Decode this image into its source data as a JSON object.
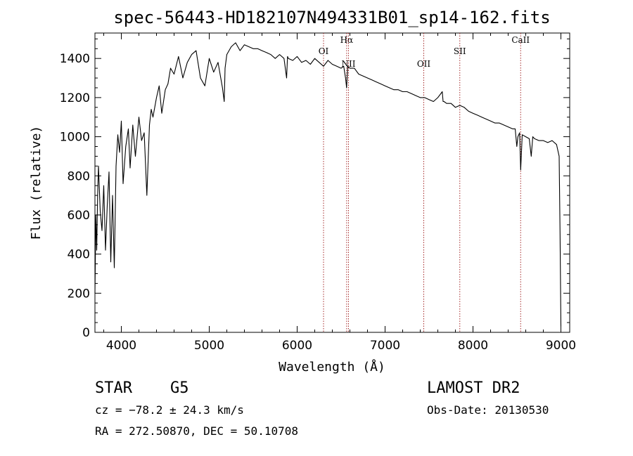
{
  "title": "spec-56443-HD182107N494331B01_sp14-162.fits",
  "chart_data": {
    "type": "line",
    "xlabel": "Wavelength (Å)",
    "ylabel": "Flux (relative)",
    "xlim": [
      3700,
      9100
    ],
    "ylim": [
      0,
      1530
    ],
    "xticks": [
      4000,
      5000,
      6000,
      7000,
      8000,
      9000
    ],
    "yticks": [
      0,
      200,
      400,
      600,
      800,
      1000,
      1200,
      1400
    ],
    "series": [
      {
        "x": [
          3700,
          3710,
          3720,
          3730,
          3740,
          3760,
          3780,
          3800,
          3820,
          3840,
          3860,
          3880,
          3900,
          3920,
          3940,
          3960,
          3980,
          4000,
          4020,
          4050,
          4080,
          4100,
          4130,
          4160,
          4200,
          4230,
          4260,
          4290,
          4320,
          4340,
          4360,
          4400,
          4430,
          4460,
          4500,
          4530,
          4560,
          4600,
          4650,
          4700,
          4750,
          4800,
          4850,
          4900,
          4950,
          5000,
          5050,
          5100,
          5150,
          5170,
          5180,
          5200,
          5250,
          5300,
          5350,
          5400,
          5450,
          5500,
          5550,
          5600,
          5650,
          5700,
          5750,
          5800,
          5850,
          5880,
          5890,
          5900,
          5950,
          6000,
          6050,
          6100,
          6150,
          6200,
          6250,
          6300,
          6350,
          6400,
          6450,
          6500,
          6530,
          6550,
          6562,
          6575,
          6600,
          6650,
          6700,
          6750,
          6800,
          6850,
          6900,
          6950,
          7000,
          7050,
          7100,
          7150,
          7200,
          7250,
          7300,
          7350,
          7400,
          7450,
          7500,
          7550,
          7600,
          7650,
          7660,
          7670,
          7700,
          7750,
          7800,
          7850,
          7900,
          7950,
          8000,
          8050,
          8100,
          8150,
          8200,
          8250,
          8300,
          8350,
          8400,
          8450,
          8480,
          8498,
          8510,
          8530,
          8542,
          8560,
          8600,
          8640,
          8662,
          8680,
          8700,
          8750,
          8800,
          8850,
          8900,
          8950,
          8980,
          8990,
          9000
        ],
        "y": [
          200,
          600,
          420,
          700,
          850,
          620,
          520,
          750,
          420,
          650,
          820,
          360,
          700,
          330,
          850,
          1010,
          920,
          1080,
          760,
          950,
          1040,
          840,
          1060,
          900,
          1100,
          980,
          1020,
          700,
          1060,
          1140,
          1100,
          1200,
          1260,
          1120,
          1240,
          1270,
          1350,
          1320,
          1410,
          1300,
          1380,
          1420,
          1440,
          1300,
          1260,
          1400,
          1330,
          1380,
          1250,
          1180,
          1350,
          1420,
          1460,
          1480,
          1440,
          1470,
          1460,
          1450,
          1450,
          1440,
          1430,
          1420,
          1400,
          1420,
          1400,
          1300,
          1410,
          1400,
          1390,
          1410,
          1380,
          1390,
          1370,
          1400,
          1380,
          1360,
          1390,
          1370,
          1360,
          1350,
          1360,
          1300,
          1250,
          1360,
          1350,
          1350,
          1320,
          1310,
          1300,
          1290,
          1280,
          1270,
          1260,
          1250,
          1240,
          1240,
          1230,
          1230,
          1220,
          1210,
          1200,
          1200,
          1190,
          1180,
          1200,
          1230,
          1180,
          1180,
          1170,
          1170,
          1150,
          1160,
          1150,
          1130,
          1120,
          1110,
          1100,
          1090,
          1080,
          1070,
          1070,
          1060,
          1050,
          1040,
          1040,
          950,
          1000,
          1020,
          830,
          1010,
          1000,
          990,
          900,
          1000,
          990,
          980,
          980,
          970,
          980,
          960,
          900,
          500,
          30
        ]
      }
    ],
    "lines": [
      {
        "name": "OI",
        "x": 6300
      },
      {
        "name": "Hα",
        "x": 6563
      },
      {
        "name": "NII",
        "x": 6584
      },
      {
        "name": "OII",
        "x": 7440
      },
      {
        "name": "SII",
        "x": 7850
      },
      {
        "name": "CaII",
        "x": 8542
      }
    ],
    "line_color": "#a52a2a"
  },
  "info": {
    "obj_class": "STAR",
    "subclass": "G5",
    "cz": "cz = −78.2 ± 24.3 km/s",
    "radec": "RA = 272.50870, DEC =  50.10708",
    "survey": "LAMOST DR2",
    "obs_date": "Obs-Date: 20130530"
  }
}
